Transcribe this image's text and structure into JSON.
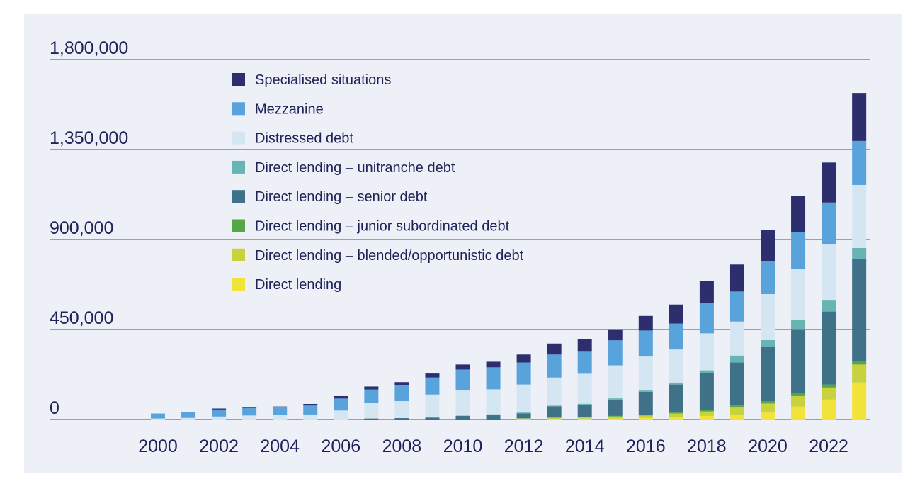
{
  "chart_data": {
    "type": "bar",
    "stacked": true,
    "title": "",
    "xlabel": "",
    "ylabel": "",
    "ylim": [
      0,
      1800000
    ],
    "y_ticks": [
      "0",
      "450,000",
      "900,000",
      "1,350,000",
      "1,800,000"
    ],
    "y_tick_values": [
      0,
      450000,
      900000,
      1350000,
      1800000
    ],
    "x_tick_labels": [
      "2000",
      "2002",
      "2004",
      "2006",
      "2008",
      "2010",
      "2012",
      "2014",
      "2016",
      "2018",
      "2020",
      "2022"
    ],
    "categories": [
      "2000",
      "2001",
      "2002",
      "2003",
      "2004",
      "2005",
      "2006",
      "2007",
      "2008",
      "2009",
      "2010",
      "2011",
      "2012",
      "2013",
      "2014",
      "2015",
      "2016",
      "2017",
      "2018",
      "2019",
      "2020",
      "2021",
      "2022",
      "2023"
    ],
    "grid": "horizontal",
    "legend_position": "top-left",
    "series": [
      {
        "name": "Direct lending",
        "color": "#f2e33a",
        "values": [
          0,
          0,
          0,
          0,
          0,
          0,
          0,
          0,
          0,
          0,
          0,
          0,
          2000,
          3000,
          4000,
          5000,
          8000,
          12000,
          18000,
          25000,
          35000,
          65000,
          100000,
          185000
        ]
      },
      {
        "name": "Direct lending – blended/opportunistic debt",
        "color": "#c8d23c",
        "values": [
          0,
          0,
          0,
          0,
          0,
          0,
          0,
          0,
          0,
          0,
          0,
          0,
          3000,
          6000,
          8000,
          10000,
          12000,
          18000,
          22000,
          35000,
          45000,
          52000,
          60000,
          90000
        ]
      },
      {
        "name": "Direct lending – junior subordinated debt",
        "color": "#54a646",
        "values": [
          0,
          0,
          0,
          0,
          0,
          0,
          0,
          0,
          0,
          0,
          0,
          0,
          1000,
          2000,
          2000,
          3000,
          4000,
          5000,
          6000,
          10000,
          12000,
          15000,
          15000,
          18000
        ]
      },
      {
        "name": "Direct lending – senior debt",
        "color": "#3f7189",
        "values": [
          0,
          0,
          0,
          0,
          0,
          0,
          0,
          5000,
          7000,
          10000,
          18000,
          22000,
          25000,
          55000,
          60000,
          82000,
          115000,
          140000,
          185000,
          215000,
          270000,
          320000,
          365000,
          510000
        ]
      },
      {
        "name": "Direct lending – unitranche debt",
        "color": "#67b5b3",
        "values": [
          0,
          0,
          0,
          0,
          0,
          0,
          0,
          0,
          0,
          0,
          2000,
          4000,
          4000,
          4000,
          5000,
          6000,
          6000,
          10000,
          15000,
          35000,
          35000,
          45000,
          55000,
          55000
        ]
      },
      {
        "name": "Distressed debt",
        "color": "#d5e6f3",
        "values": [
          5000,
          8000,
          15000,
          20000,
          22000,
          25000,
          45000,
          80000,
          85000,
          115000,
          125000,
          125000,
          140000,
          140000,
          150000,
          165000,
          170000,
          165000,
          185000,
          170000,
          230000,
          255000,
          280000,
          315000
        ]
      },
      {
        "name": "Mezzanine",
        "color": "#59a3dc",
        "values": [
          25000,
          30000,
          35000,
          38000,
          38000,
          45000,
          60000,
          65000,
          80000,
          85000,
          105000,
          110000,
          110000,
          115000,
          110000,
          125000,
          130000,
          130000,
          150000,
          150000,
          165000,
          185000,
          210000,
          220000
        ]
      },
      {
        "name": "Specialised situations",
        "color": "#2c2e6e",
        "values": [
          0,
          0,
          5000,
          5000,
          5000,
          8000,
          12000,
          15000,
          15000,
          20000,
          25000,
          28000,
          40000,
          55000,
          63000,
          56000,
          73000,
          95000,
          110000,
          135000,
          155000,
          180000,
          200000,
          240000
        ]
      }
    ]
  }
}
